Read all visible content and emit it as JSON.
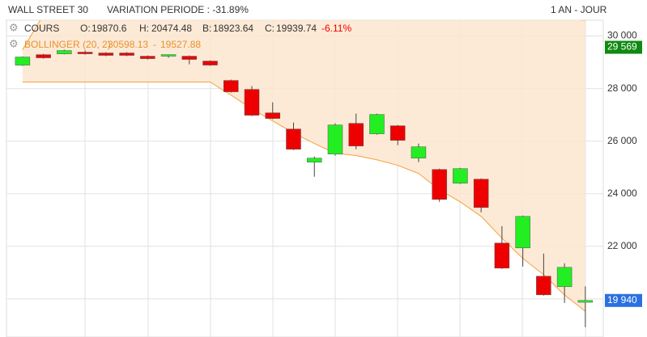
{
  "chart_data": {
    "type": "candlestick",
    "title": "WALL STREET 30",
    "subtitle": "VARIATION PERIODE : -31.89%",
    "period": "1 AN - JOUR",
    "legend_name": "COURS",
    "ohlc_labels": [
      "O:",
      "H:",
      "B:",
      "C:"
    ],
    "change_label": "-6.11%",
    "categories": [
      null,
      null,
      null,
      null,
      null,
      null,
      null,
      null,
      null,
      null,
      null,
      null,
      null,
      null,
      null,
      null,
      null,
      null,
      null,
      null,
      null,
      null,
      null,
      null,
      null,
      null,
      null,
      null
    ],
    "open": [
      28890,
      29290,
      29320,
      29385,
      29354,
      29354,
      29231,
      29231,
      29231,
      29046,
      28308,
      27969,
      27077,
      26462,
      25200,
      25508,
      26677,
      26277,
      26585,
      25354,
      24923,
      24400,
      24554,
      22123,
      21938,
      20862,
      20462,
      19870.6
    ],
    "high": [
      29220,
      29323,
      29480,
      29450,
      29385,
      29385,
      29260,
      29300,
      29260,
      29077,
      28340,
      28092,
      27477,
      26708,
      25415,
      26677,
      27046,
      27046,
      26615,
      25908,
      24954,
      24985,
      24585,
      22769,
      23169,
      21723,
      21354,
      20474.48
    ],
    "low": [
      28860,
      29138,
      29300,
      29290,
      29230,
      29230,
      29100,
      29170,
      28923,
      28862,
      27846,
      26954,
      26831,
      25662,
      24646,
      25446,
      25692,
      26246,
      25846,
      25200,
      23692,
      24369,
      23292,
      21138,
      21231,
      20123,
      19846,
      18923.64
    ],
    "close": [
      29200,
      29169,
      29446,
      29323,
      29262,
      29262,
      29138,
      29292,
      29108,
      28892,
      27877,
      26985,
      26862,
      25692,
      25354,
      26615,
      25815,
      27015,
      26031,
      25785,
      23785,
      24954,
      23477,
      21169,
      23138,
      20154,
      21200,
      19939.74
    ],
    "up_color": "#22ee22",
    "down_color": "#ee0000",
    "band": {
      "name": "BOLLINGER (20, 2)",
      "color": "#f5a040",
      "fill": "#fde6cf",
      "upper": [
        29480,
        30800,
        30800,
        30800,
        30800,
        30800,
        30800,
        30800,
        30800,
        30800,
        30800,
        30800,
        30800,
        30800,
        30800,
        30800,
        30800,
        30800,
        30800,
        30800,
        30800,
        30800,
        30800,
        30800,
        30800,
        30800,
        30650,
        30598.13
      ],
      "lower": [
        28250,
        28250,
        28250,
        28250,
        28250,
        28250,
        28250,
        28250,
        28250,
        28250,
        27750,
        27230,
        26770,
        26310,
        25910,
        25540,
        25450,
        25290,
        25080,
        24770,
        24150,
        23690,
        23140,
        22310,
        21540,
        20920,
        20150,
        19527.88
      ]
    },
    "markers": [
      {
        "value": 29569,
        "label": "29 569",
        "color": "#108a10"
      },
      {
        "value": 19939.74,
        "label": "19 940",
        "color": "#2a70e0"
      }
    ],
    "ylim": [
      18550,
      30600
    ],
    "yticks": [
      {
        "value": 20000,
        "label": "20 000"
      },
      {
        "value": 22000,
        "label": "22 000"
      },
      {
        "value": 24000,
        "label": "24 000"
      },
      {
        "value": 26000,
        "label": "26 000"
      },
      {
        "value": 28000,
        "label": "28 000"
      },
      {
        "value": 30000,
        "label": "30 000"
      }
    ],
    "grid": true
  }
}
